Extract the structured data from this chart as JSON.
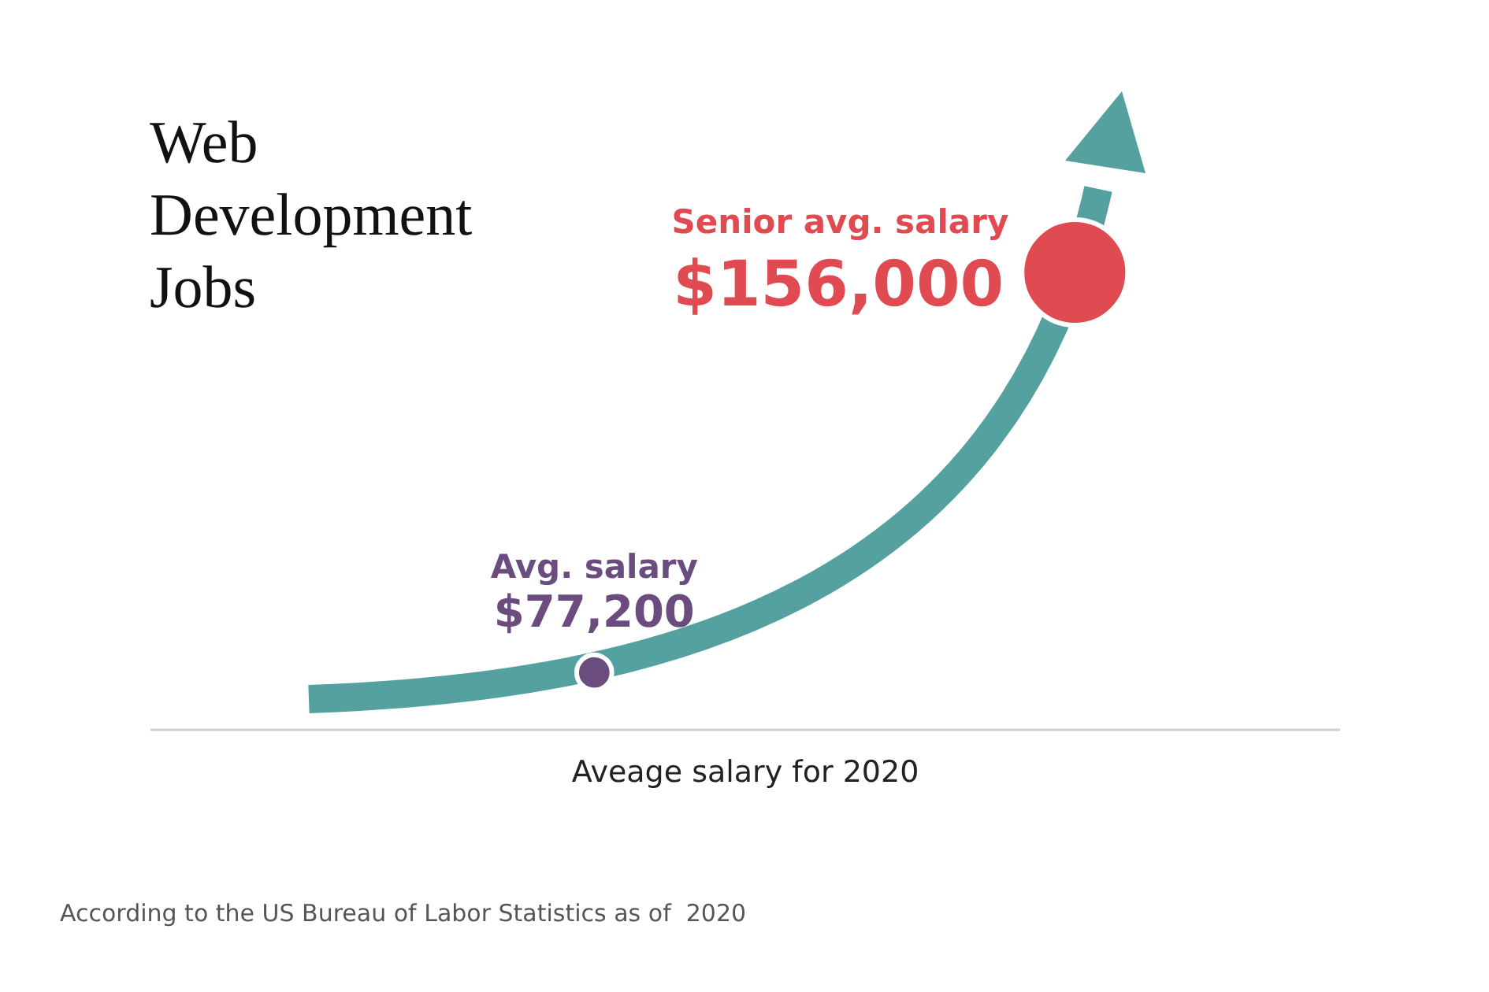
{
  "chart_data": {
    "type": "other",
    "title": "Web Development Jobs",
    "xlabel": "Aveage salary for 2020",
    "categories": [
      "Avg. salary",
      "Senior avg. salary"
    ],
    "values": [
      77200,
      156000
    ],
    "value_labels": [
      "$77,200",
      "$156,000"
    ],
    "colors": [
      "#6b4c7e",
      "#e04b52"
    ],
    "annotations": [
      "According to the US Bureau of Labor Statistics as of  2020"
    ]
  }
}
